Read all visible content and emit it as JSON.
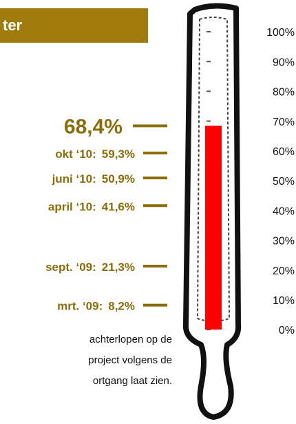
{
  "chart_data": {
    "type": "thermometer",
    "title": "ter",
    "categories": [
      null,
      "okt ‘10:",
      "juni ‘10:",
      "april ‘10:",
      "sept. ‘09:",
      "mrt. ‘09:"
    ],
    "values": [
      68.4,
      59.3,
      50.9,
      41.6,
      21.3,
      8.2
    ],
    "value_labels": [
      "68,4%",
      "59,3%",
      "50,9%",
      "41,6%",
      "21,3%",
      "8,2%"
    ],
    "color": "#ff0000",
    "label_color": "#8b6d0a",
    "ylim": [
      0,
      100
    ],
    "yticks": [
      {
        "value": 0,
        "label": "0%"
      },
      {
        "value": 10,
        "label": "10%"
      },
      {
        "value": 20,
        "label": "20%"
      },
      {
        "value": 30,
        "label": "30%"
      },
      {
        "value": 40,
        "label": "40%"
      },
      {
        "value": 50,
        "label": "50%"
      },
      {
        "value": 60,
        "label": "60%"
      },
      {
        "value": 70,
        "label": "70%"
      },
      {
        "value": 80,
        "label": "80%"
      },
      {
        "value": 90,
        "label": "90%"
      },
      {
        "value": 100,
        "label": "100%"
      }
    ],
    "notes": [
      "achterlopen op de",
      "project volgens de",
      "ortgang laat zien."
    ]
  }
}
